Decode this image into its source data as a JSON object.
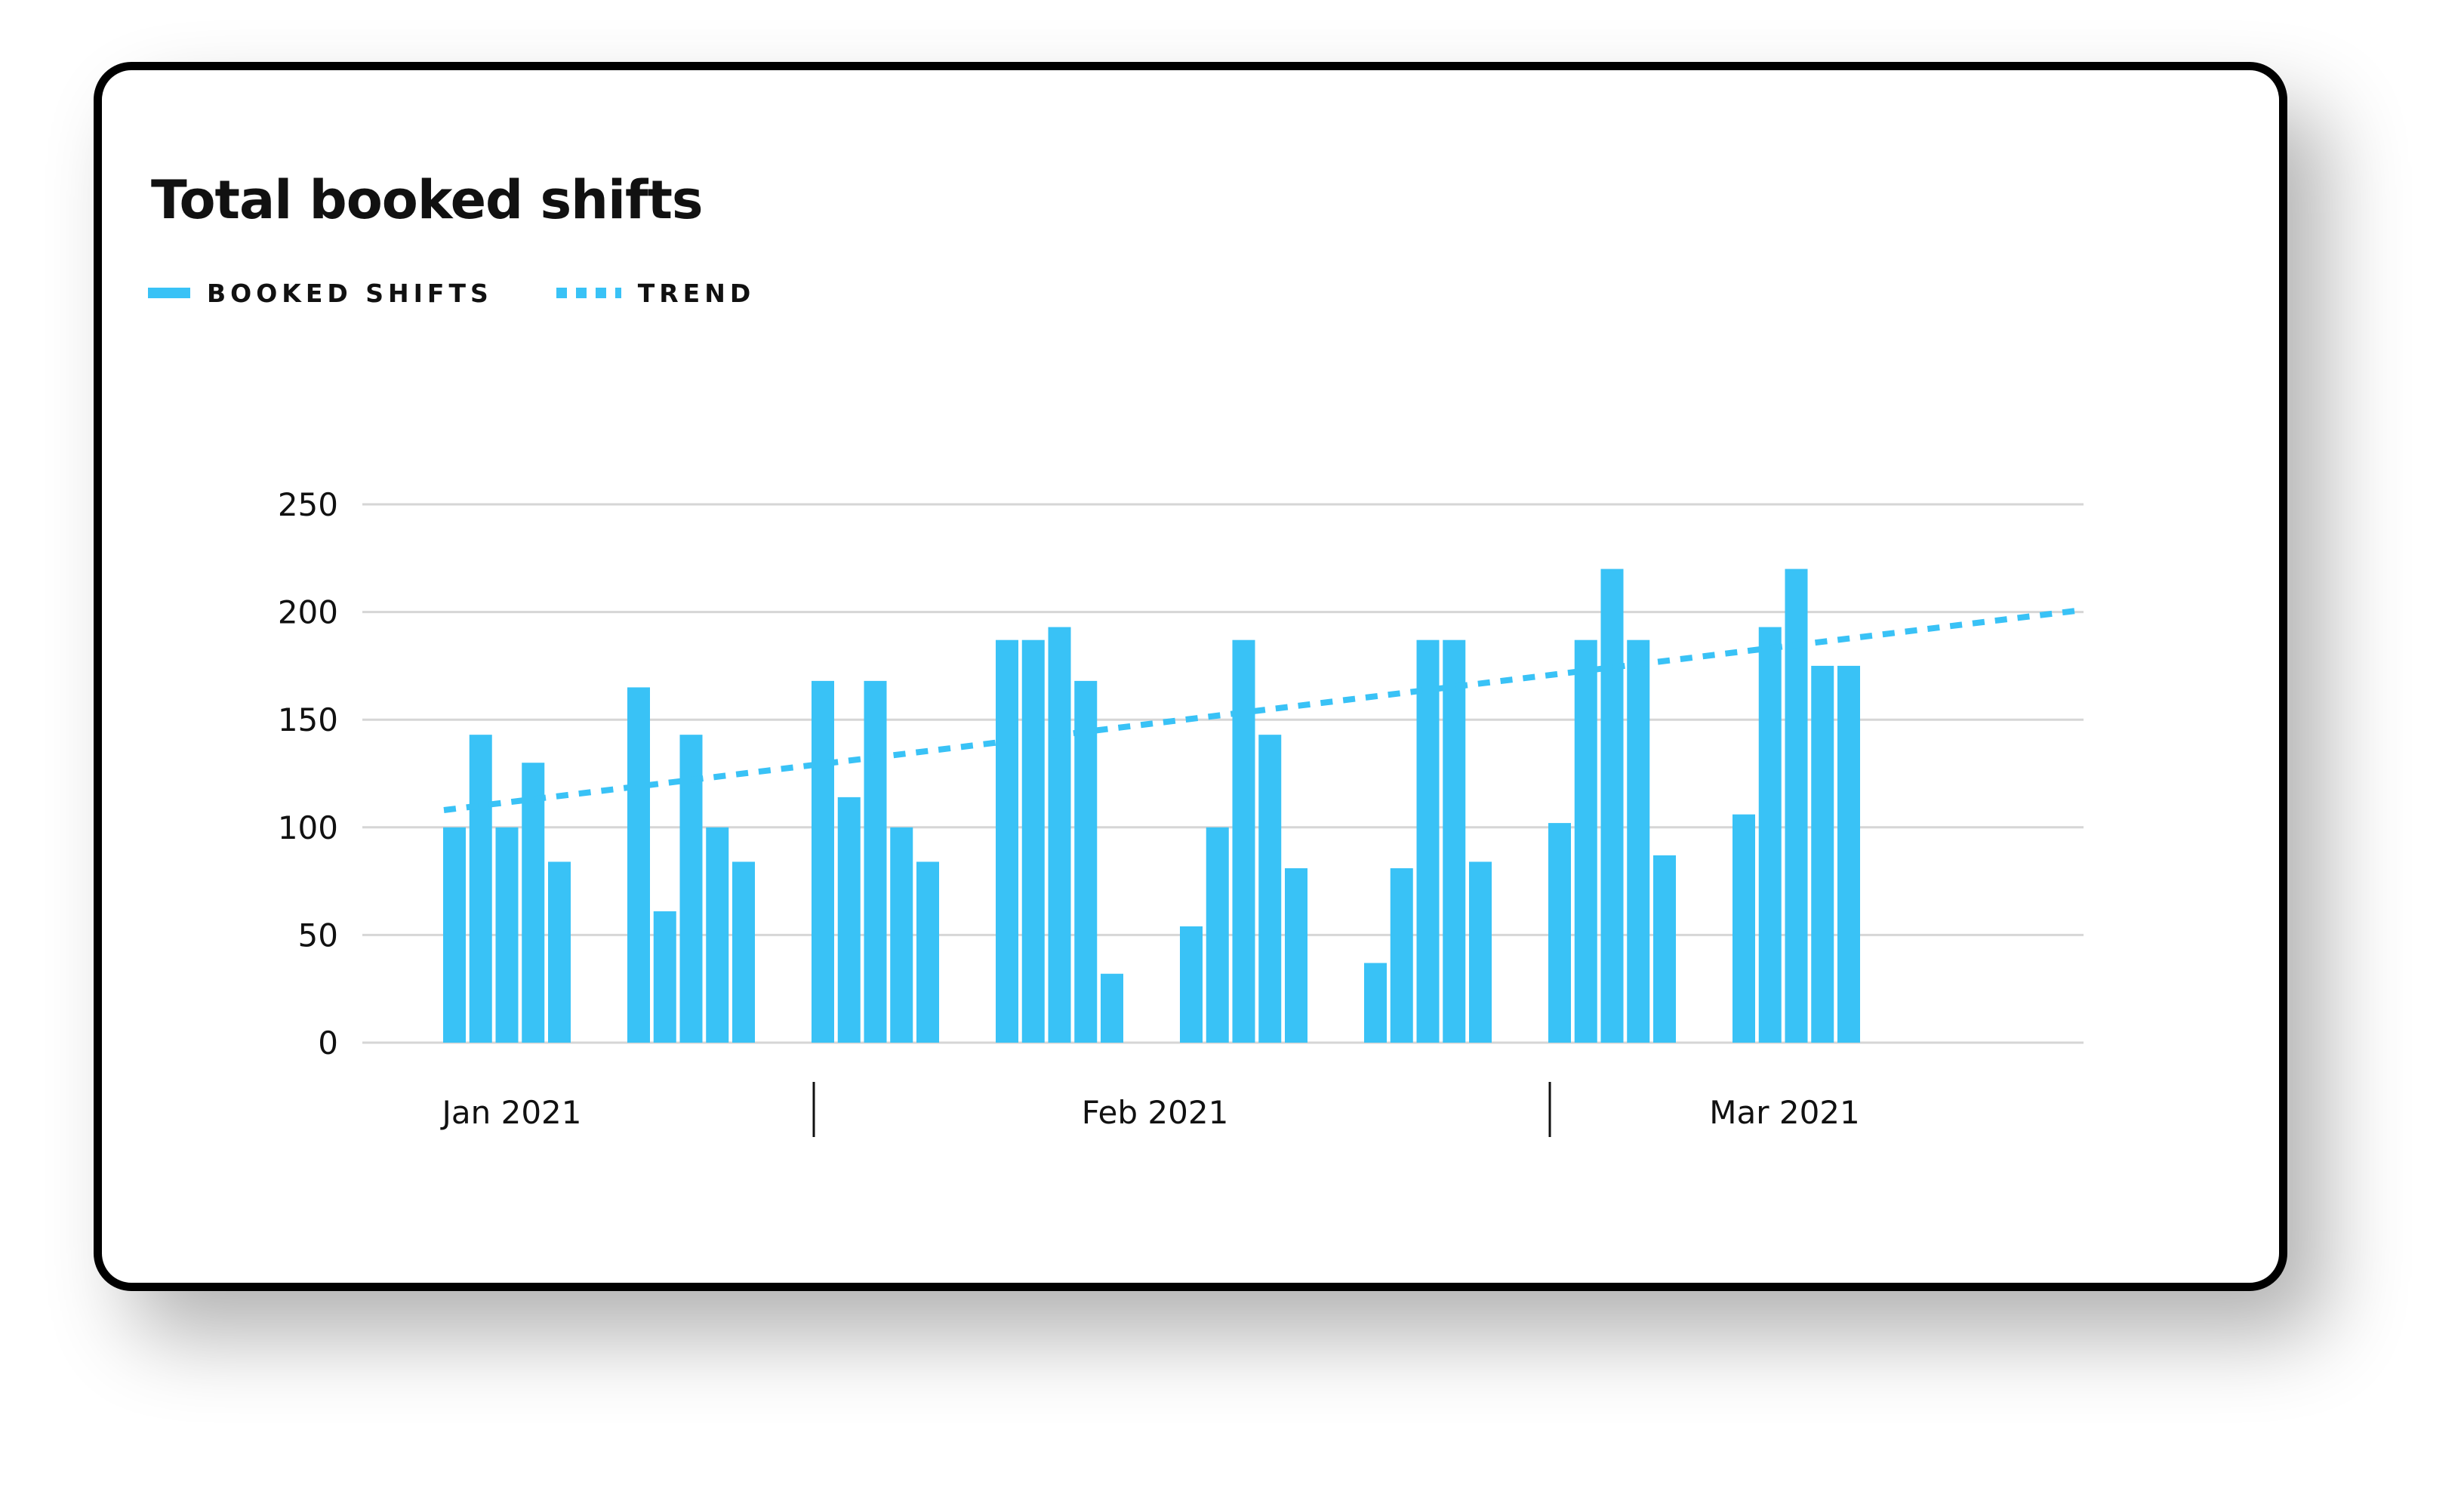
{
  "chart_data": {
    "type": "bar",
    "title": "Total booked shifts",
    "legend": [
      {
        "label": "BOOKED SHIFTS",
        "style": "solid"
      },
      {
        "label": "TREND",
        "style": "dashed"
      }
    ],
    "y_ticks": [
      "250",
      "200",
      "150",
      "100",
      "50",
      "0"
    ],
    "ylim": [
      0,
      250
    ],
    "x_month_labels": [
      "Jan 2021",
      "Feb 2021",
      "Mar 2021"
    ],
    "grid": true,
    "bar_color": "#39c2f6",
    "trend_color": "#39c2f6",
    "series": [
      {
        "name": "BOOKED SHIFTS",
        "groups": [
          [
            100,
            143,
            100,
            130,
            84
          ],
          [
            165,
            61,
            143,
            100,
            84
          ],
          [
            168,
            114,
            168,
            100,
            84
          ],
          [
            187,
            187,
            193,
            168,
            32
          ],
          [
            54,
            100,
            187,
            143,
            81
          ],
          [
            37,
            81,
            187,
            187,
            84
          ],
          [
            102,
            187,
            220,
            187,
            87
          ],
          [
            106,
            193,
            220,
            175,
            175
          ]
        ]
      }
    ],
    "trend": {
      "name": "TREND",
      "start": 108,
      "end": 201
    }
  }
}
